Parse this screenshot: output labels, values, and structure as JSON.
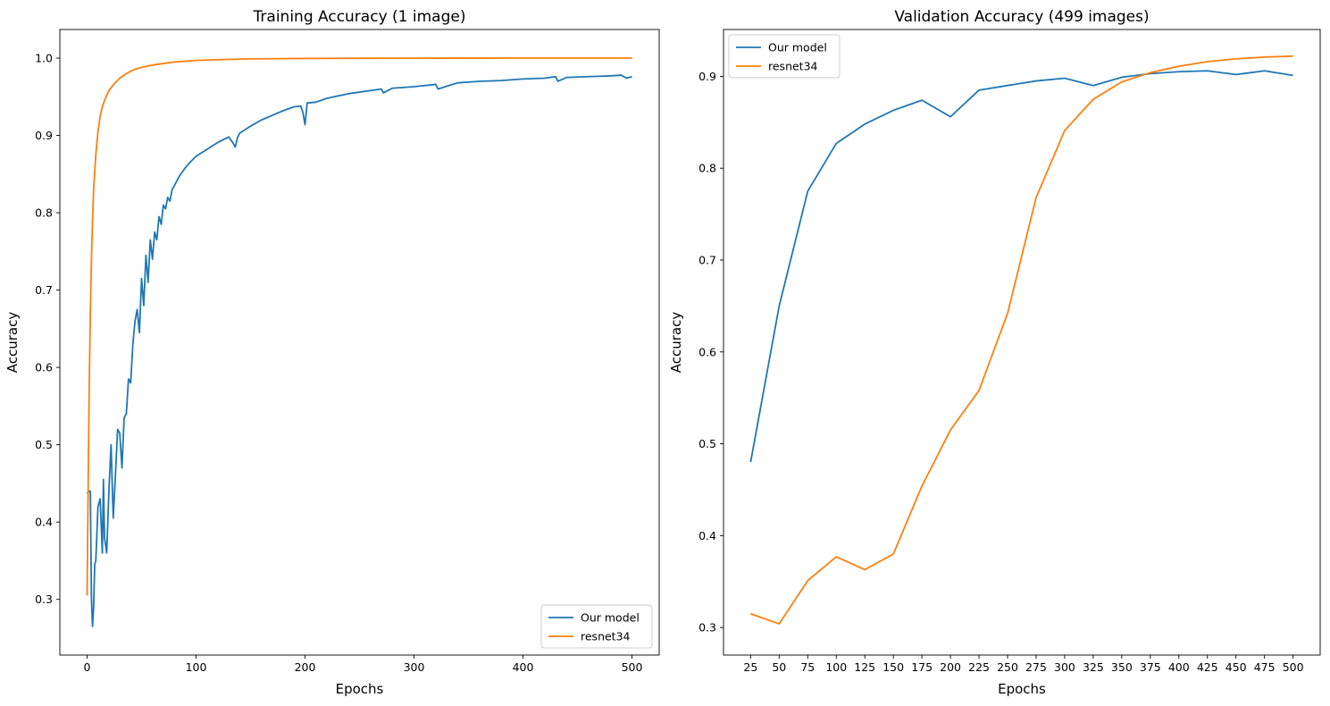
{
  "chart_data": [
    {
      "type": "line",
      "title": "Training Accuracy (1 image)",
      "xlabel": "Epochs",
      "ylabel": "Accuracy",
      "xlim": [
        -25,
        525
      ],
      "ylim": [
        0.228,
        1.037
      ],
      "xticks": [
        0,
        100,
        200,
        300,
        400,
        500
      ],
      "xtick_labels": [
        "0",
        "100",
        "200",
        "300",
        "400",
        "500"
      ],
      "yticks": [
        0.3,
        0.4,
        0.5,
        0.6,
        0.7,
        0.8,
        0.9,
        1.0
      ],
      "ytick_labels": [
        "0.3",
        "0.4",
        "0.5",
        "0.6",
        "0.7",
        "0.8",
        "0.9",
        "1.0"
      ],
      "legend_position": "lower-right",
      "grid": false,
      "series": [
        {
          "name": "Our model",
          "color": "#1f77b4",
          "x": [
            0,
            2,
            3,
            4,
            5,
            6,
            7,
            8,
            10,
            12,
            14,
            15,
            16,
            18,
            20,
            22,
            24,
            26,
            28,
            30,
            32,
            34,
            36,
            38,
            40,
            42,
            44,
            46,
            48,
            50,
            52,
            54,
            56,
            58,
            60,
            62,
            64,
            66,
            68,
            70,
            72,
            74,
            76,
            78,
            80,
            85,
            90,
            95,
            100,
            110,
            120,
            130,
            134,
            136,
            138,
            140,
            150,
            160,
            170,
            180,
            190,
            196,
            198,
            200,
            202,
            210,
            220,
            240,
            260,
            270,
            272,
            280,
            300,
            320,
            322,
            340,
            360,
            380,
            400,
            420,
            430,
            432,
            440,
            460,
            480,
            490,
            495,
            500
          ],
          "y": [
            0.437,
            0.44,
            0.44,
            0.3,
            0.265,
            0.29,
            0.345,
            0.35,
            0.42,
            0.43,
            0.36,
            0.455,
            0.38,
            0.36,
            0.44,
            0.5,
            0.405,
            0.46,
            0.52,
            0.515,
            0.47,
            0.535,
            0.54,
            0.585,
            0.58,
            0.63,
            0.66,
            0.675,
            0.645,
            0.715,
            0.68,
            0.745,
            0.71,
            0.765,
            0.74,
            0.775,
            0.765,
            0.795,
            0.785,
            0.81,
            0.805,
            0.82,
            0.815,
            0.83,
            0.835,
            0.848,
            0.858,
            0.866,
            0.873,
            0.882,
            0.891,
            0.898,
            0.89,
            0.885,
            0.897,
            0.903,
            0.912,
            0.92,
            0.926,
            0.932,
            0.937,
            0.938,
            0.93,
            0.914,
            0.942,
            0.943,
            0.948,
            0.954,
            0.958,
            0.96,
            0.955,
            0.961,
            0.963,
            0.966,
            0.96,
            0.968,
            0.97,
            0.971,
            0.973,
            0.974,
            0.976,
            0.97,
            0.975,
            0.976,
            0.977,
            0.978,
            0.974,
            0.976
          ]
        },
        {
          "name": "resnet34",
          "color": "#ff7f0e",
          "x": [
            0,
            1,
            2,
            3,
            4,
            5,
            6,
            8,
            10,
            12,
            14,
            16,
            18,
            20,
            25,
            30,
            35,
            40,
            45,
            50,
            60,
            70,
            80,
            100,
            120,
            150,
            200,
            250,
            300,
            400,
            500
          ],
          "y": [
            0.305,
            0.45,
            0.58,
            0.67,
            0.74,
            0.79,
            0.83,
            0.875,
            0.905,
            0.925,
            0.937,
            0.945,
            0.952,
            0.958,
            0.967,
            0.974,
            0.979,
            0.983,
            0.986,
            0.988,
            0.991,
            0.993,
            0.995,
            0.997,
            0.998,
            0.999,
            0.9995,
            0.9998,
            0.9999,
            1.0,
            1.0
          ]
        }
      ]
    },
    {
      "type": "line",
      "title": "Validation Accuracy (499 images)",
      "xlabel": "Epochs",
      "ylabel": "Accuracy",
      "xlim": [
        1.25,
        523.75
      ],
      "ylim": [
        0.27,
        0.951
      ],
      "xticks": [
        25,
        50,
        75,
        100,
        125,
        150,
        175,
        200,
        225,
        250,
        275,
        300,
        325,
        350,
        375,
        400,
        425,
        450,
        475,
        500
      ],
      "xtick_labels": [
        "25",
        "50",
        "75",
        "100",
        "125",
        "150",
        "175",
        "200",
        "225",
        "250",
        "275",
        "300",
        "325",
        "350",
        "375",
        "400",
        "425",
        "450",
        "475",
        "500"
      ],
      "yticks": [
        0.3,
        0.4,
        0.5,
        0.6,
        0.7,
        0.8,
        0.9
      ],
      "ytick_labels": [
        "0.3",
        "0.4",
        "0.5",
        "0.6",
        "0.7",
        "0.8",
        "0.9"
      ],
      "legend_position": "upper-left",
      "grid": false,
      "series": [
        {
          "name": "Our model",
          "color": "#1f77b4",
          "x": [
            25,
            50,
            75,
            100,
            125,
            150,
            175,
            200,
            225,
            250,
            275,
            300,
            325,
            350,
            375,
            400,
            425,
            450,
            475,
            500
          ],
          "y": [
            0.48,
            0.65,
            0.775,
            0.827,
            0.848,
            0.863,
            0.874,
            0.856,
            0.885,
            0.89,
            0.895,
            0.898,
            0.89,
            0.899,
            0.903,
            0.905,
            0.906,
            0.902,
            0.906,
            0.901
          ]
        },
        {
          "name": "resnet34",
          "color": "#ff7f0e",
          "x": [
            25,
            50,
            75,
            100,
            125,
            150,
            175,
            200,
            225,
            250,
            275,
            300,
            325,
            350,
            375,
            400,
            425,
            450,
            475,
            500
          ],
          "y": [
            0.315,
            0.304,
            0.351,
            0.377,
            0.363,
            0.38,
            0.454,
            0.515,
            0.558,
            0.642,
            0.768,
            0.841,
            0.875,
            0.894,
            0.904,
            0.911,
            0.916,
            0.919,
            0.921,
            0.922
          ]
        }
      ]
    }
  ]
}
